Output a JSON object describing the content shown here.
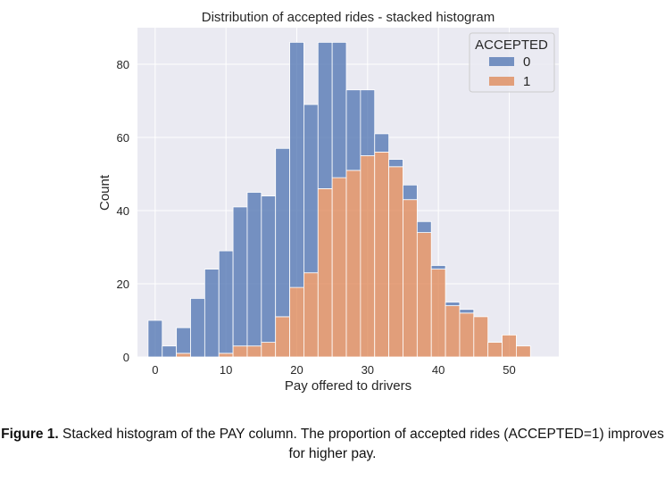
{
  "chart_data": {
    "type": "bar",
    "stacked": true,
    "title": "Distribution of accepted rides - stacked histogram",
    "xlabel": "Pay offered to drivers",
    "ylabel": "Count",
    "xlim": [
      -2.5,
      57
    ],
    "ylim": [
      0,
      90
    ],
    "xticks": [
      0,
      10,
      20,
      30,
      40,
      50
    ],
    "yticks": [
      0,
      20,
      40,
      60,
      80
    ],
    "grid": true,
    "background": "#eaeaf2",
    "bin_edges": [
      -1,
      1,
      3,
      5,
      7,
      9,
      11,
      13,
      15,
      17,
      19,
      21,
      23,
      25,
      27,
      29,
      31,
      33,
      35,
      37,
      39,
      41,
      43,
      45,
      47,
      49,
      51,
      53,
      55
    ],
    "series": [
      {
        "name": "0",
        "color": "#4c72b0",
        "values": [
          10,
          3,
          7,
          16,
          24,
          28,
          38,
          42,
          40,
          46,
          67,
          46,
          40,
          37,
          22,
          18,
          5,
          2,
          4,
          3,
          1,
          1,
          1,
          0,
          0,
          0,
          0,
          0
        ]
      },
      {
        "name": "1",
        "color": "#dd8452",
        "values": [
          0,
          0,
          1,
          0,
          0,
          1,
          3,
          3,
          4,
          11,
          19,
          23,
          46,
          49,
          51,
          55,
          56,
          52,
          43,
          34,
          24,
          14,
          12,
          11,
          4,
          6,
          3,
          0
        ]
      }
    ],
    "legend": {
      "title": "ACCEPTED",
      "placement": "top-right",
      "entries": [
        "0",
        "1"
      ]
    }
  },
  "caption": {
    "label": "Figure 1.",
    "text": " Stacked histogram of the PAY column. The proportion of accepted rides (ACCEPTED=1) improves for higher pay."
  }
}
